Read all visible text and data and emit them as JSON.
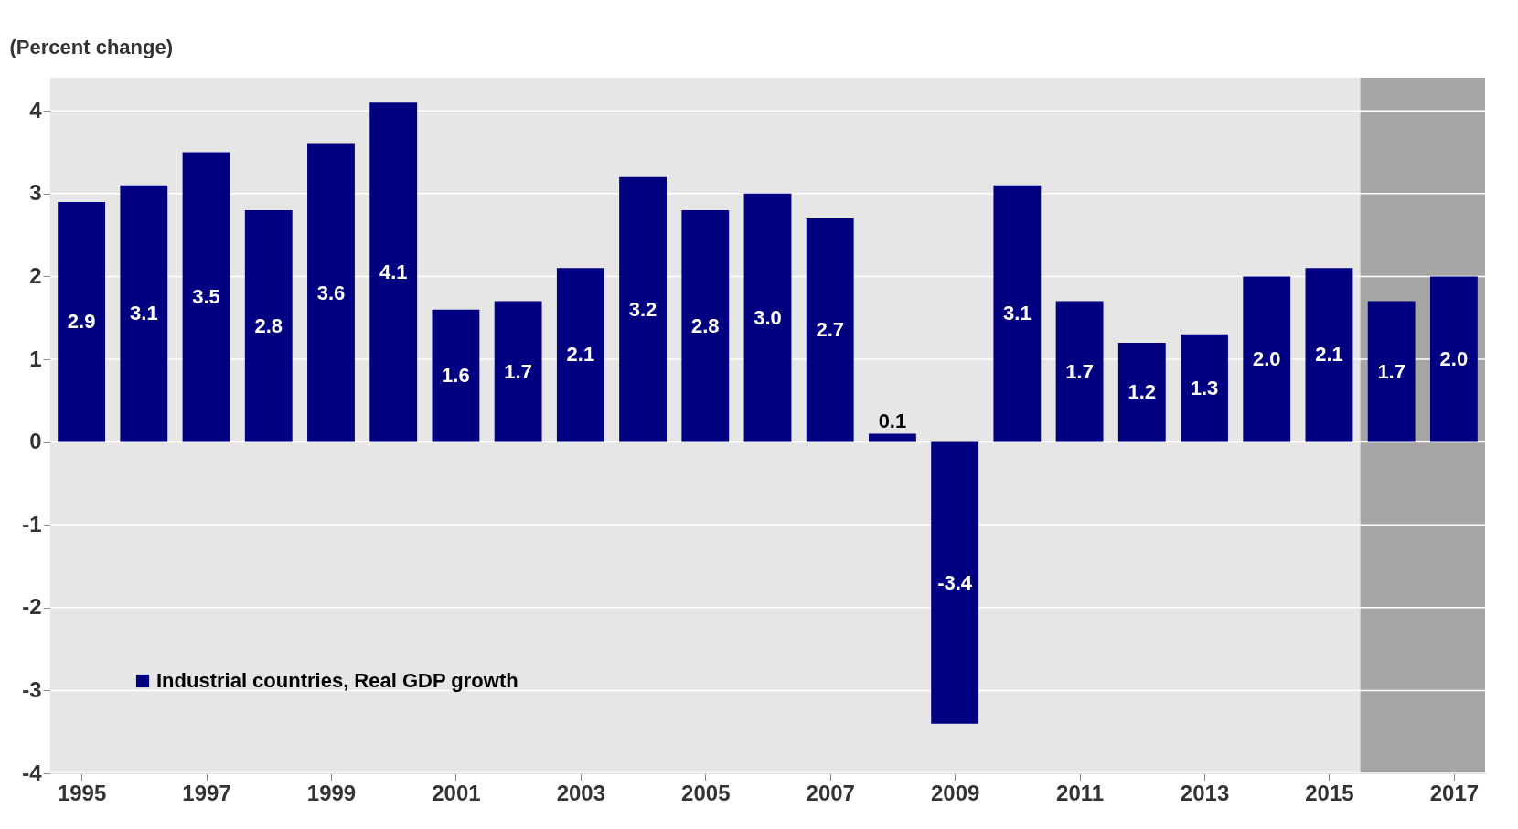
{
  "chart_data": {
    "type": "bar",
    "ylabel": "(Percent change)",
    "x": [
      1995,
      1996,
      1997,
      1998,
      1999,
      2000,
      2001,
      2002,
      2003,
      2004,
      2005,
      2006,
      2007,
      2008,
      2009,
      2010,
      2011,
      2012,
      2013,
      2014,
      2015,
      2016,
      2017
    ],
    "series": [
      {
        "name": "Industrial countries, Real GDP growth",
        "color": "#000080",
        "values": [
          2.9,
          3.1,
          3.5,
          2.8,
          3.6,
          4.1,
          1.6,
          1.7,
          2.1,
          3.2,
          2.8,
          3.0,
          2.7,
          0.1,
          -3.4,
          3.1,
          1.7,
          1.2,
          1.3,
          2.0,
          2.1,
          1.7,
          2.0
        ],
        "value_labels": [
          "2.9",
          "3.1",
          "3.5",
          "2.8",
          "3.6",
          "4.1",
          "1.6",
          "1.7",
          "2.1",
          "3.2",
          "2.8",
          "3.0",
          "2.7",
          "0.1",
          "-3.4",
          "3.1",
          "1.7",
          "1.2",
          "1.3",
          "2.0",
          "2.1",
          "1.7",
          "2.0"
        ]
      }
    ],
    "xlim": [
      1994.5,
      2017.5
    ],
    "xticks": [
      1995,
      1997,
      1999,
      2001,
      2003,
      2005,
      2007,
      2009,
      2011,
      2013,
      2015,
      2017
    ],
    "ylim": [
      -4,
      4.4
    ],
    "yticks": [
      -4,
      -3,
      -2,
      -1,
      0,
      1,
      2,
      3,
      4
    ],
    "bands": [
      {
        "axis": "x",
        "from": 2015.5,
        "to": 2017.5,
        "color": "#a6a6a6"
      }
    ],
    "grid": "y",
    "legend": "bottom left"
  }
}
